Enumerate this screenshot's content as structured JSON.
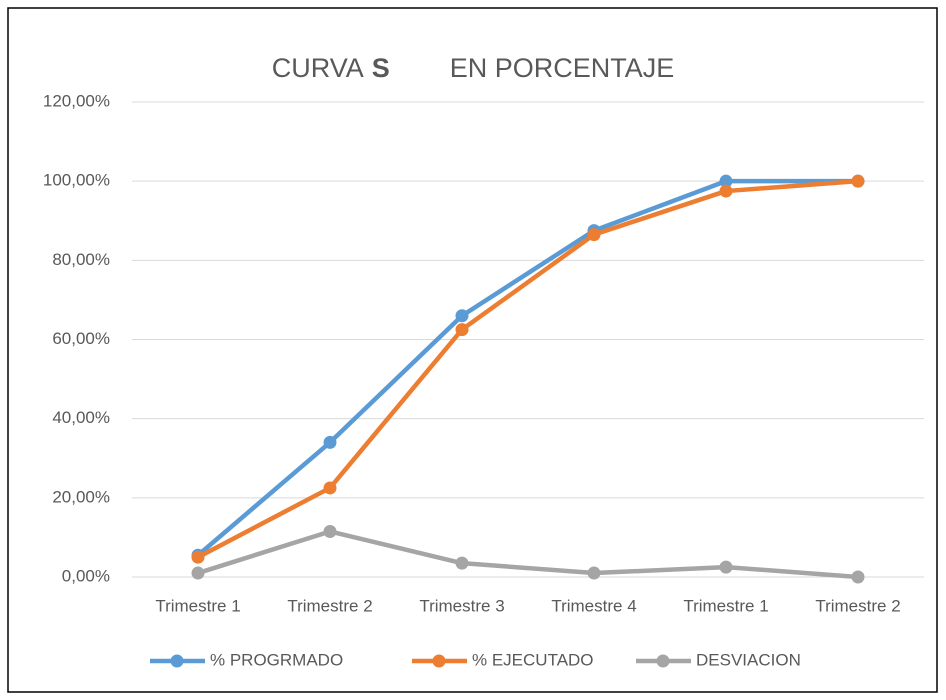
{
  "chart_data": {
    "type": "line",
    "title": [
      "CURVA",
      "S",
      "EN PORCENTAJE"
    ],
    "categories": [
      "Trimestre 1",
      "Trimestre 2",
      "Trimestre 3",
      "Trimestre 4",
      "Trimestre 1",
      "Trimestre 2"
    ],
    "series": [
      {
        "name": "% PROGRMADO",
        "color": "#5b9bd5",
        "values": [
          5.5,
          34,
          66,
          87.5,
          100,
          100
        ]
      },
      {
        "name": "% EJECUTADO",
        "color": "#ed7d31",
        "values": [
          5,
          22.5,
          62.5,
          86.5,
          97.5,
          100
        ]
      },
      {
        "name": "DESVIACION",
        "color": "#a5a5a5",
        "values": [
          1,
          11.5,
          3.5,
          1,
          2.5,
          0
        ]
      }
    ],
    "ylim": [
      0,
      120
    ],
    "yticks": [
      {
        "value": 0,
        "label": "0,00%"
      },
      {
        "value": 20,
        "label": "20,00%"
      },
      {
        "value": 40,
        "label": "40,00%"
      },
      {
        "value": 60,
        "label": "60,00%"
      },
      {
        "value": 80,
        "label": "80,00%"
      },
      {
        "value": 100,
        "label": "100,00%"
      },
      {
        "value": 120,
        "label": "120,00%"
      }
    ],
    "grid": true,
    "legend": "bottom"
  }
}
